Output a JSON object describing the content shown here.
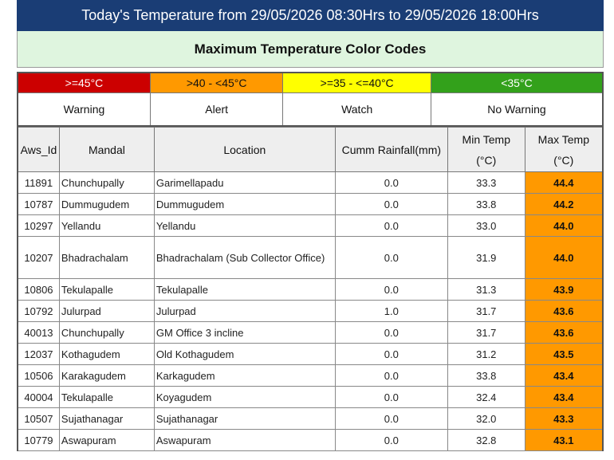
{
  "header": {
    "title": "Today's Temperature from 29/05/2026 08:30Hrs to 29/05/2026 18:00Hrs"
  },
  "legend": {
    "title": "Maximum Temperature Color Codes",
    "items": [
      {
        "range": ">=45°C",
        "label": "Warning",
        "color": "#cc0000",
        "text_color": "#ffffff"
      },
      {
        "range": ">40 - <45°C",
        "label": "Alert",
        "color": "#ff9900",
        "text_color": "#111111"
      },
      {
        "range": ">=35 - <=40°C",
        "label": "Watch",
        "color": "#ffff00",
        "text_color": "#111111"
      },
      {
        "range": "<35°C",
        "label": "No Warning",
        "color": "#33a11b",
        "text_color": "#ffffff"
      }
    ]
  },
  "table": {
    "columns": [
      "Aws_Id",
      "Mandal",
      "Location",
      "Cumm Rainfall(mm)",
      "Min Temp\n(°C)",
      "Max Temp\n(°C)"
    ],
    "rows": [
      [
        "11891",
        "Chunchupally",
        "Garimellapadu",
        "0.0",
        "33.3",
        "44.4"
      ],
      [
        "10787",
        "Dummugudem",
        "Dummugudem",
        "0.0",
        "33.8",
        "44.2"
      ],
      [
        "10297",
        "Yellandu",
        "Yellandu",
        "0.0",
        "33.0",
        "44.0"
      ],
      [
        "10207",
        "Bhadrachalam",
        "Bhadrachalam (Sub Collector Office)",
        "0.0",
        "31.9",
        "44.0"
      ],
      [
        "10806",
        "Tekulapalle",
        "Tekulapalle",
        "0.0",
        "31.3",
        "43.9"
      ],
      [
        "10792",
        "Julurpad",
        "Julurpad",
        "1.0",
        "31.7",
        "43.6"
      ],
      [
        "40013",
        "Chunchupally",
        "GM Office 3 incline",
        "0.0",
        "31.7",
        "43.6"
      ],
      [
        "12037",
        "Kothagudem",
        "Old Kothagudem",
        "0.0",
        "31.2",
        "43.5"
      ],
      [
        "10506",
        "Karakagudem",
        "Karkagudem",
        "0.0",
        "33.8",
        "43.4"
      ],
      [
        "40004",
        "Tekulapalle",
        "Koyagudem",
        "0.0",
        "32.4",
        "43.4"
      ],
      [
        "10507",
        "Sujathanagar",
        "Sujathanagar",
        "0.0",
        "32.0",
        "43.3"
      ],
      [
        "10779",
        "Aswapuram",
        "Aswapuram",
        "0.0",
        "32.8",
        "43.1"
      ]
    ]
  }
}
